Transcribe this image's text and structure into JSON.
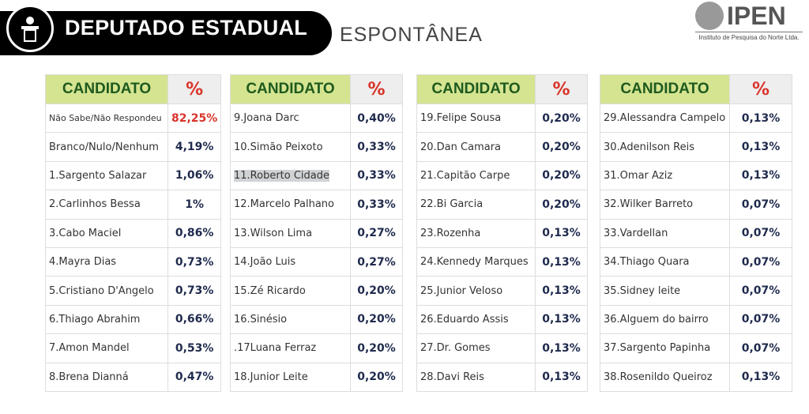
{
  "header": {
    "title": "DEPUTADO ESTADUAL",
    "subtitle": "ESPONTÂNEA",
    "logo": "IPEN",
    "logo_caption": "Instituto de Pesquisa do Norte Ltda."
  },
  "tables": [
    {
      "columns": [
        "CANDIDATO",
        "%"
      ],
      "rows": [
        [
          "Não Sabe/Não Respondeu",
          "82,25%"
        ],
        [
          "Branco/Nulo/Nenhum",
          "4,19%"
        ],
        [
          "1.Sargento Salazar",
          "1,06%"
        ],
        [
          "2.Carlinhos Bessa",
          "1%"
        ],
        [
          "3.Cabo Maciel",
          "0,86%"
        ],
        [
          "4.Mayra Dias",
          "0,73%"
        ],
        [
          "5.Cristiano D'Angelo",
          "0,73%"
        ],
        [
          "6.Thiago Abrahim",
          "0,66%"
        ],
        [
          "7.Amon Mandel",
          "0,53%"
        ],
        [
          "8.Brena Dianná",
          "0,47%"
        ]
      ]
    },
    {
      "columns": [
        "CANDIDATO",
        "%"
      ],
      "rows": [
        [
          "9.Joana Darc",
          "0,40%"
        ],
        [
          "10.Simão Peixoto",
          "0,33%"
        ],
        [
          "11.Roberto Cidade",
          "0,33%"
        ],
        [
          "12.Marcelo Palhano",
          "0,33%"
        ],
        [
          "13.Wilson Lima",
          "0,27%"
        ],
        [
          "14.João Luis",
          "0,27%"
        ],
        [
          "15.Zé Ricardo",
          "0,20%"
        ],
        [
          "16.Sinésio",
          "0,20%"
        ],
        [
          ".17Luana Ferraz",
          "0,20%"
        ],
        [
          "18.Junior Leite",
          "0,20%"
        ]
      ]
    },
    {
      "columns": [
        "CANDIDATO",
        "%"
      ],
      "rows": [
        [
          "19.Felipe Sousa",
          "0,20%"
        ],
        [
          "20.Dan Camara",
          "0,20%"
        ],
        [
          "21.Capitão Carpe",
          "0,20%"
        ],
        [
          "22.Bi Garcia",
          "0,20%"
        ],
        [
          "23.Rozenha",
          "0,13%"
        ],
        [
          "24.Kennedy Marques",
          "0,13%"
        ],
        [
          "25.Junior Veloso",
          "0,13%"
        ],
        [
          "26.Eduardo Assis",
          "0,13%"
        ],
        [
          "27.Dr. Gomes",
          "0,13%"
        ],
        [
          "28.Davi Reis",
          "0,13%"
        ]
      ]
    },
    {
      "columns": [
        "CANDIDATO",
        "%"
      ],
      "rows": [
        [
          "29.Alessandra Campelo",
          "0,13%"
        ],
        [
          "30.Adenilson Reis",
          "0,13%"
        ],
        [
          "31.Omar Aziz",
          "0,13%"
        ],
        [
          "32.Wilker Barreto",
          "0,07%"
        ],
        [
          "33.Vardellan",
          "0,07%"
        ],
        [
          "34.Thiago Quara",
          "0,07%"
        ],
        [
          "35.Sidney leite",
          "0,07%"
        ],
        [
          "36.Alguem do bairro",
          "0,07%"
        ],
        [
          "37.Sargento Papinha",
          "0,07%"
        ],
        [
          "38.Rosenildo Queiroz",
          "0,13%"
        ]
      ]
    }
  ]
}
